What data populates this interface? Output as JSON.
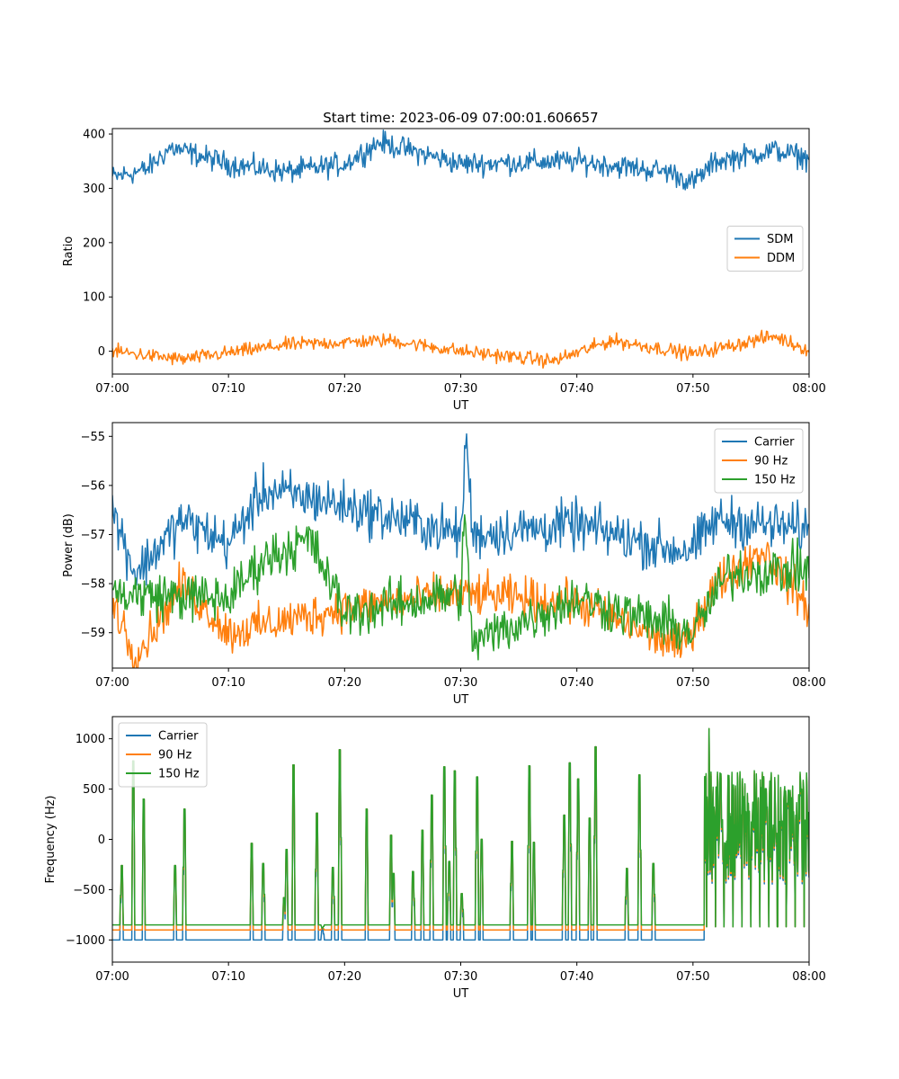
{
  "title": "Start time: 2023-06-09 07:00:01.606657",
  "colors": {
    "c0": "#1f77b4",
    "c1": "#ff7f0e",
    "c2": "#2ca02c"
  },
  "chart_data": [
    {
      "type": "line",
      "title": "Start time: 2023-06-09 07:00:01.606657",
      "xlabel": "UT",
      "ylabel": "Ratio",
      "xlim": [
        "07:00",
        "08:00"
      ],
      "xticks": [
        "07:00",
        "07:10",
        "07:20",
        "07:30",
        "07:40",
        "07:50",
        "08:00"
      ],
      "ylim": [
        -42,
        410
      ],
      "yticks": [
        "0",
        "100",
        "200",
        "300",
        "400"
      ],
      "yticks_values": [
        0,
        100,
        200,
        300,
        400
      ],
      "legend": "center-right",
      "grid": false,
      "series": [
        {
          "name": "SDM",
          "color": "#1f77b4",
          "base": 340,
          "amp": 15,
          "points": [
            [
              "07:00",
              320
            ],
            [
              "07:03",
              335
            ],
            [
              "07:05",
              375
            ],
            [
              "07:10",
              345
            ],
            [
              "07:15",
              330
            ],
            [
              "07:20",
              345
            ],
            [
              "07:23",
              385
            ],
            [
              "07:30",
              345
            ],
            [
              "07:40",
              350
            ],
            [
              "07:48",
              330
            ],
            [
              "07:50",
              310
            ],
            [
              "07:52",
              350
            ],
            [
              "07:57",
              370
            ],
            [
              "08:00",
              355
            ]
          ]
        },
        {
          "name": "DDM",
          "color": "#ff7f0e",
          "base": 0,
          "amp": 9,
          "points": [
            [
              "07:00",
              0
            ],
            [
              "07:06",
              -15
            ],
            [
              "07:15",
              12
            ],
            [
              "07:24",
              20
            ],
            [
              "07:30",
              0
            ],
            [
              "07:38",
              -18
            ],
            [
              "07:43",
              20
            ],
            [
              "07:50",
              -5
            ],
            [
              "07:57",
              28
            ],
            [
              "08:00",
              2
            ]
          ]
        }
      ]
    },
    {
      "type": "line",
      "xlabel": "UT",
      "ylabel": "Power (dB)",
      "xlim": [
        "07:00",
        "08:00"
      ],
      "xticks": [
        "07:00",
        "07:10",
        "07:20",
        "07:30",
        "07:40",
        "07:50",
        "08:00"
      ],
      "ylim": [
        -59.72,
        -54.72
      ],
      "yticks": [
        "−55",
        "−56",
        "−57",
        "−58",
        "−59"
      ],
      "yticks_values": [
        -55,
        -56,
        -57,
        -58,
        -59
      ],
      "legend": "top-right",
      "grid": false,
      "series": [
        {
          "name": "Carrier",
          "color": "#1f77b4",
          "base": -56.9,
          "amp": 0.35,
          "points": [
            [
              "07:00",
              -56.5
            ],
            [
              "07:02",
              -57.8
            ],
            [
              "07:06",
              -56.7
            ],
            [
              "07:10",
              -57.2
            ],
            [
              "07:13",
              -56.1
            ],
            [
              "07:18",
              -56.3
            ],
            [
              "07:30",
              -57.0
            ],
            [
              "07:30.5",
              -54.95
            ],
            [
              "07:31",
              -57.0
            ],
            [
              "07:40",
              -56.8
            ],
            [
              "07:48",
              -57.3
            ],
            [
              "07:50",
              -57.3
            ],
            [
              "07:52",
              -56.7
            ],
            [
              "08:00",
              -56.9
            ]
          ]
        },
        {
          "name": "90 Hz",
          "color": "#ff7f0e",
          "base": -58.3,
          "amp": 0.3,
          "points": [
            [
              "07:00",
              -58.3
            ],
            [
              "07:02",
              -59.5
            ],
            [
              "07:06",
              -58.0
            ],
            [
              "07:10",
              -59.0
            ],
            [
              "07:20",
              -58.5
            ],
            [
              "07:30",
              -58.2
            ],
            [
              "07:40",
              -58.4
            ],
            [
              "07:49",
              -59.3
            ],
            [
              "07:52",
              -58.0
            ],
            [
              "07:56",
              -57.3
            ],
            [
              "08:00",
              -58.5
            ]
          ]
        },
        {
          "name": "150 Hz",
          "color": "#2ca02c",
          "base": -58.3,
          "amp": 0.35,
          "points": [
            [
              "07:00",
              -58.2
            ],
            [
              "07:10",
              -58.3
            ],
            [
              "07:13",
              -57.5
            ],
            [
              "07:17",
              -57.1
            ],
            [
              "07:20",
              -58.6
            ],
            [
              "07:30",
              -58.2
            ],
            [
              "07:30.3",
              -56.6
            ],
            [
              "07:31",
              -59.2
            ],
            [
              "07:40",
              -58.3
            ],
            [
              "07:50",
              -59.0
            ],
            [
              "07:53",
              -57.8
            ],
            [
              "08:00",
              -57.7
            ]
          ]
        }
      ]
    },
    {
      "type": "line",
      "xlabel": "UT",
      "ylabel": "Frequency (Hz)",
      "xlim": [
        "07:00",
        "08:00"
      ],
      "xticks": [
        "07:00",
        "07:10",
        "07:20",
        "07:30",
        "07:40",
        "07:50",
        "08:00"
      ],
      "ylim": [
        -1220,
        1220
      ],
      "yticks": [
        "1000",
        "500",
        "0",
        "−500",
        "−1000"
      ],
      "yticks_values": [
        1000,
        500,
        0,
        -500,
        -1000
      ],
      "legend": "top-left",
      "grid": false,
      "baseline": {
        "Carrier": -1000,
        "90 Hz": -900,
        "150 Hz": -850
      },
      "spikes": [
        [
          "07:00.8",
          -260
        ],
        [
          "07:01.8",
          780
        ],
        [
          "07:02.7",
          400
        ],
        [
          "07:05.4",
          -260
        ],
        [
          "07:06.2",
          300
        ],
        [
          "07:12.0",
          -40
        ],
        [
          "07:13.0",
          -240
        ],
        [
          "07:14.8",
          -580
        ],
        [
          "07:15.0",
          -100
        ],
        [
          "07:15.6",
          740
        ],
        [
          "07:17.6",
          260
        ],
        [
          "07:18.1",
          -880
        ],
        [
          "07:19.0",
          -280
        ],
        [
          "07:19.6",
          890
        ],
        [
          "07:21.9",
          300
        ],
        [
          "07:24.0",
          40
        ],
        [
          "07:24.2",
          -340
        ],
        [
          "07:25.9",
          -320
        ],
        [
          "07:26.7",
          90
        ],
        [
          "07:27.5",
          440
        ],
        [
          "07:28.6",
          720
        ],
        [
          "07:29.0",
          -220
        ],
        [
          "07:29.5",
          680
        ],
        [
          "07:30.1",
          -540
        ],
        [
          "07:31.4",
          620
        ],
        [
          "07:31.8",
          0
        ],
        [
          "07:34.4",
          -20
        ],
        [
          "07:35.9",
          730
        ],
        [
          "07:36.3",
          -30
        ],
        [
          "07:38.9",
          240
        ],
        [
          "07:39.4",
          760
        ],
        [
          "07:40.1",
          600
        ],
        [
          "07:41.1",
          210
        ],
        [
          "07:41.6",
          920
        ],
        [
          "07:44.3",
          -290
        ],
        [
          "07:45.4",
          640
        ],
        [
          "07:46.6",
          -240
        ]
      ],
      "noisy_region": {
        "start": "07:51",
        "end": "08:00",
        "min": -910,
        "max": 1100
      }
    }
  ]
}
